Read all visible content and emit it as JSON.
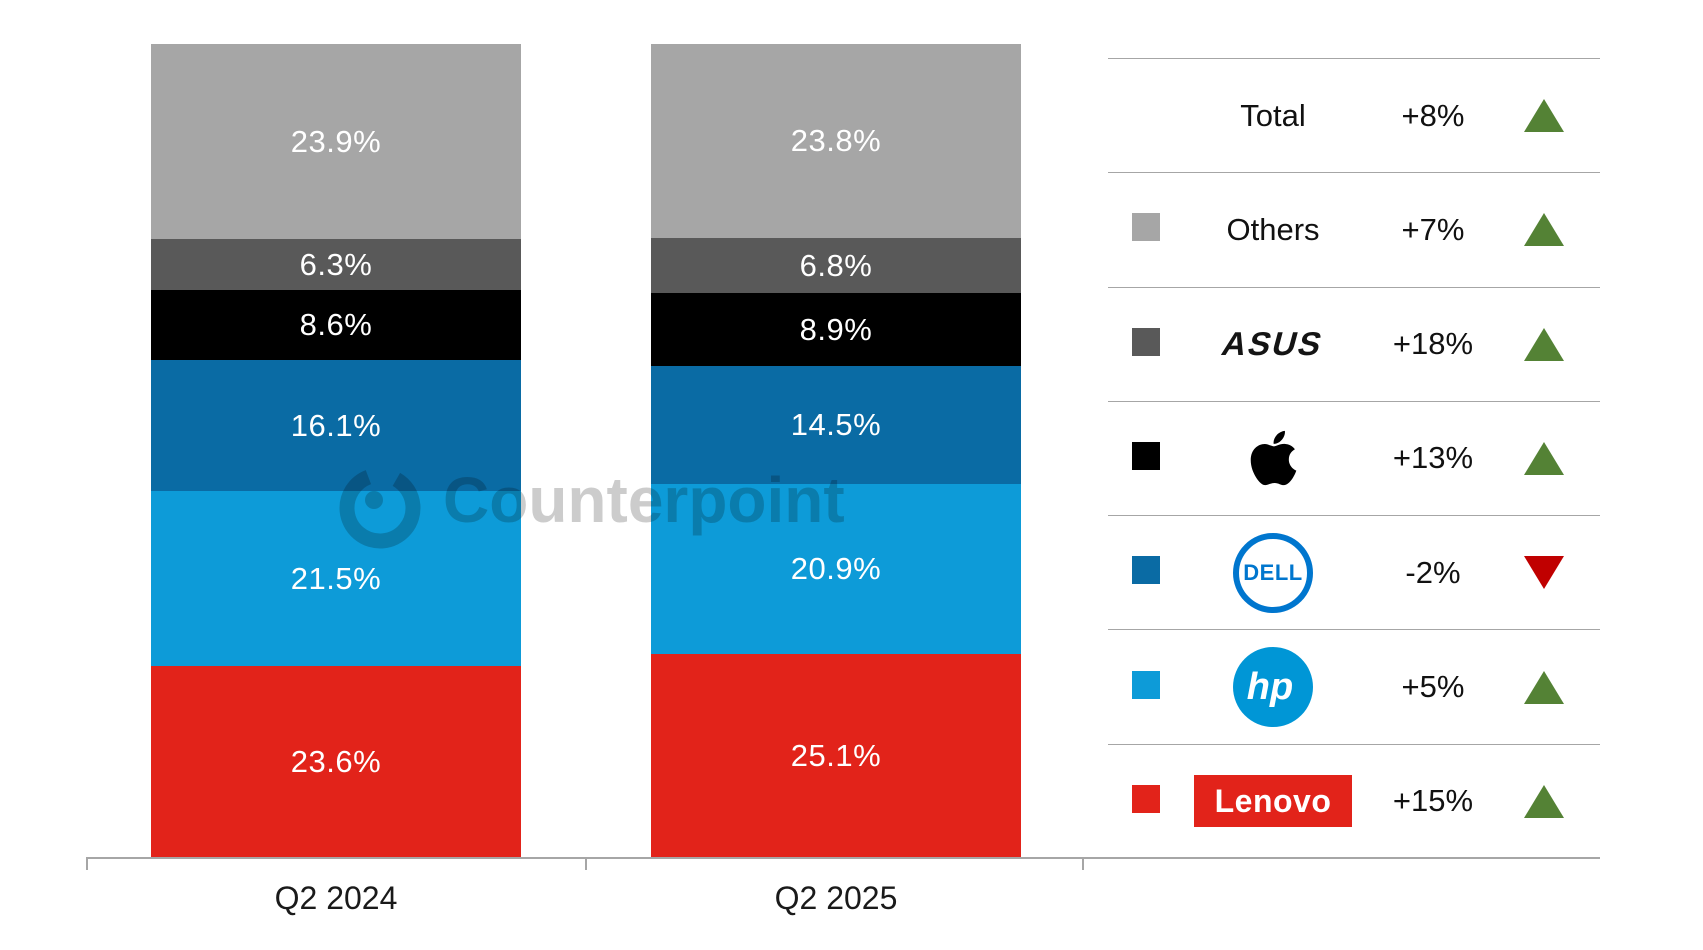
{
  "chart_data": {
    "type": "bar",
    "subtype": "stacked-100",
    "categories": [
      "Q2 2024",
      "Q2 2025"
    ],
    "series": [
      {
        "name": "Others",
        "color": "#a6a6a6",
        "values": [
          23.9,
          23.8
        ]
      },
      {
        "name": "ASUS",
        "color": "#595959",
        "values": [
          6.3,
          6.8
        ]
      },
      {
        "name": "Apple",
        "color": "#000000",
        "values": [
          8.6,
          8.9
        ]
      },
      {
        "name": "Dell",
        "color": "#0a6ba4",
        "values": [
          16.1,
          14.5
        ]
      },
      {
        "name": "HP",
        "color": "#0d9bd8",
        "values": [
          21.5,
          20.9
        ]
      },
      {
        "name": "Lenovo",
        "color": "#e2231a",
        "values": [
          23.6,
          25.1
        ]
      }
    ],
    "series_order_note": "listed top-to-bottom as drawn in each stacked column",
    "value_suffix": "%",
    "ylim": [
      0,
      100
    ],
    "grid": false,
    "legend_position": "right"
  },
  "legend": {
    "rows": [
      {
        "label": "Total",
        "logo": "text",
        "growth": "+8%",
        "direction": "up",
        "swatch": null
      },
      {
        "label": "Others",
        "logo": "text",
        "growth": "+7%",
        "direction": "up",
        "swatch": "#a6a6a6"
      },
      {
        "label": "ASUS",
        "logo": "asus",
        "growth": "+18%",
        "direction": "up",
        "swatch": "#595959"
      },
      {
        "label": "Apple",
        "logo": "apple",
        "growth": "+13%",
        "direction": "up",
        "swatch": "#000000"
      },
      {
        "label": "Dell",
        "logo": "dell",
        "growth": "-2%",
        "direction": "down",
        "swatch": "#0a6ba4"
      },
      {
        "label": "HP",
        "logo": "hp",
        "growth": "+5%",
        "direction": "up",
        "swatch": "#0d9bd8"
      },
      {
        "label": "Lenovo",
        "logo": "lenovo",
        "growth": "+15%",
        "direction": "up",
        "swatch": "#e2231a"
      }
    ]
  },
  "watermark": {
    "text": "Counterpoint"
  },
  "colors": {
    "trend_up": "#548235",
    "trend_down": "#c00000",
    "axis": "#a6a6a6",
    "bar_label_text": "#ffffff",
    "dell_blue": "#0076ce",
    "hp_blue": "#0096d6",
    "lenovo_red": "#e2231a"
  }
}
